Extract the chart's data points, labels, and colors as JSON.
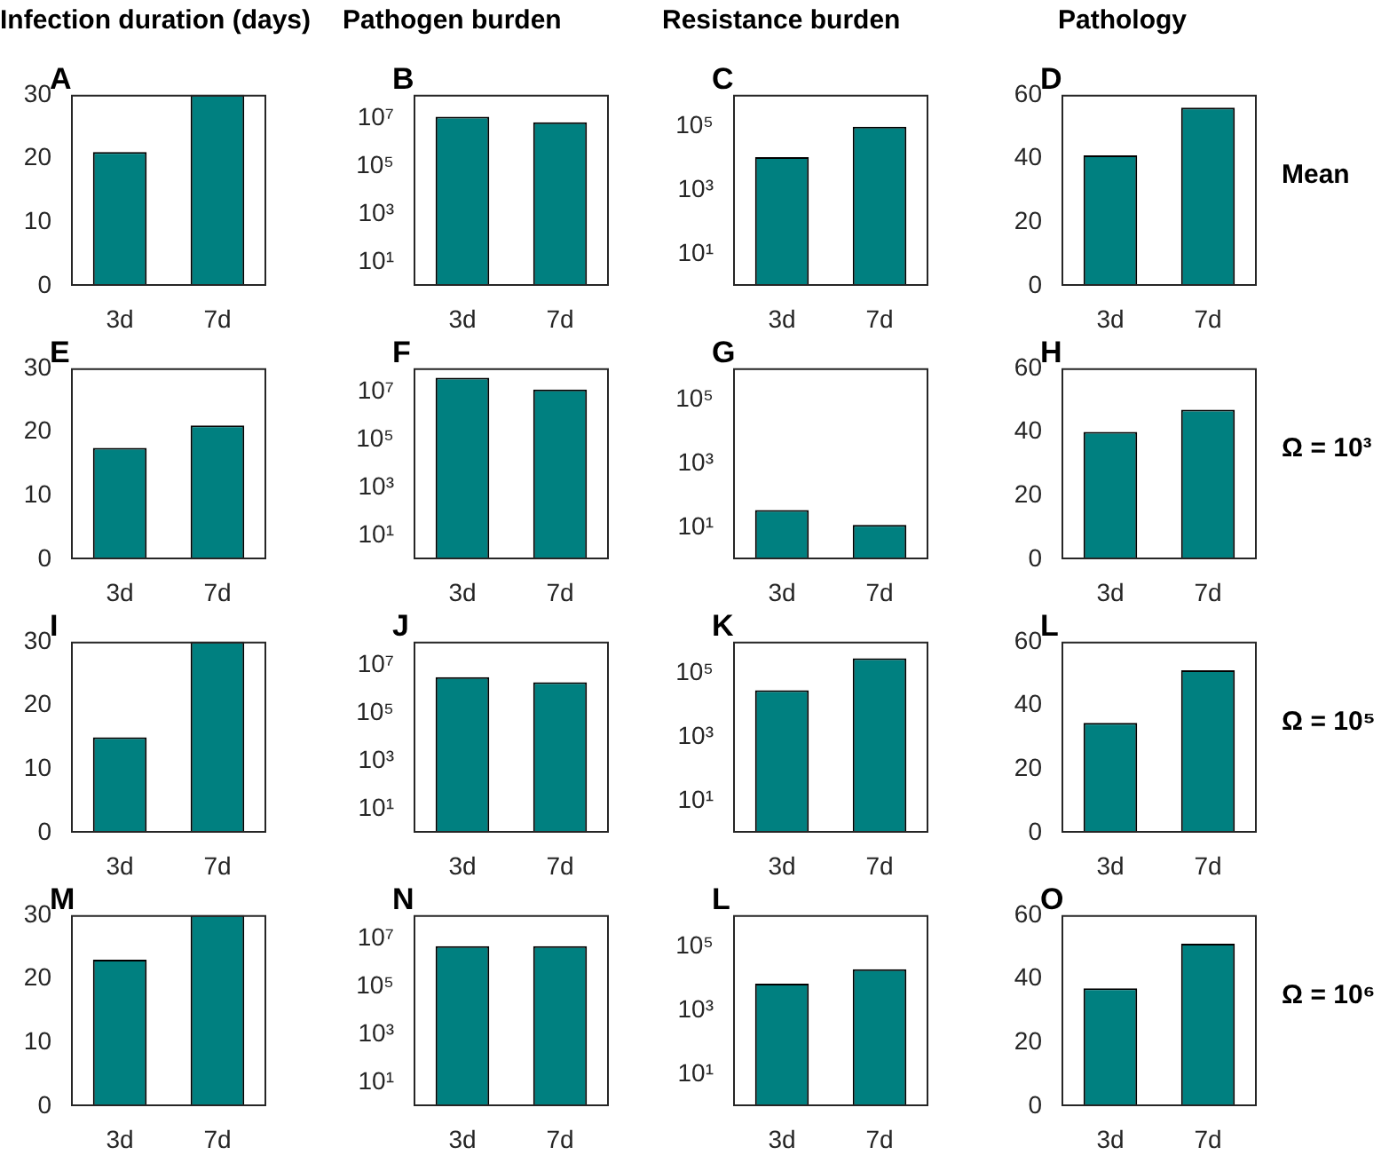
{
  "chart_data": [
    {
      "type": "bar",
      "title": "A",
      "subtitle": "Infection duration (days)",
      "categories": [
        "3d",
        "7d"
      ],
      "values": [
        21,
        30
      ],
      "color": "#008080",
      "ylim": [
        0,
        30
      ],
      "yticks": [
        0,
        10,
        20,
        30
      ]
    },
    {
      "type": "bar",
      "title": "B",
      "subtitle": "Pathogen burden",
      "categories": [
        "3d",
        "7d"
      ],
      "values": [
        12000000,
        7000000
      ],
      "color": "#008080",
      "log": true,
      "ylim": [
        1,
        100000000
      ],
      "yticks": [
        {
          "value": 10,
          "label": "10¹"
        },
        {
          "value": 1000,
          "label": "10³"
        },
        {
          "value": 100000,
          "label": "10⁵"
        },
        {
          "value": 10000000,
          "label": "10⁷"
        }
      ]
    },
    {
      "type": "bar",
      "title": "C",
      "subtitle": "Resistance burden",
      "categories": [
        "3d",
        "7d"
      ],
      "values": [
        11000,
        100000
      ],
      "color": "#008080",
      "log": true,
      "ylim": [
        1,
        1000000
      ],
      "yticks": [
        {
          "value": 10,
          "label": "10¹"
        },
        {
          "value": 1000,
          "label": "10³"
        },
        {
          "value": 100000,
          "label": "10⁵"
        }
      ]
    },
    {
      "type": "bar",
      "title": "D",
      "subtitle": "Pathology",
      "annotations": [
        "Mean"
      ],
      "categories": [
        "3d",
        "7d"
      ],
      "values": [
        41,
        56
      ],
      "color": "#008080",
      "ylim": [
        0,
        60
      ],
      "yticks": [
        0,
        20,
        40,
        60
      ]
    },
    {
      "type": "bar",
      "title": "E",
      "categories": [
        "3d",
        "7d"
      ],
      "values": [
        17.5,
        21
      ],
      "color": "#008080",
      "ylim": [
        0,
        30
      ],
      "yticks": [
        0,
        10,
        20,
        30
      ]
    },
    {
      "type": "bar",
      "title": "F",
      "categories": [
        "3d",
        "7d"
      ],
      "values": [
        40000000,
        13000000
      ],
      "color": "#008080",
      "log": true,
      "ylim": [
        1,
        100000000
      ],
      "yticks": [
        {
          "value": 10,
          "label": "10¹"
        },
        {
          "value": 1000,
          "label": "10³"
        },
        {
          "value": 100000,
          "label": "10⁵"
        },
        {
          "value": 10000000,
          "label": "10⁷"
        }
      ]
    },
    {
      "type": "bar",
      "title": "G",
      "categories": [
        "3d",
        "7d"
      ],
      "values": [
        35,
        12
      ],
      "color": "#008080",
      "log": true,
      "ylim": [
        1,
        1000000
      ],
      "yticks": [
        {
          "value": 10,
          "label": "10¹"
        },
        {
          "value": 1000,
          "label": "10³"
        },
        {
          "value": 100000,
          "label": "10⁵"
        }
      ]
    },
    {
      "type": "bar",
      "title": "H",
      "annotations": [
        "Ω = 10³"
      ],
      "categories": [
        "3d",
        "7d"
      ],
      "values": [
        40,
        47
      ],
      "color": "#008080",
      "ylim": [
        0,
        60
      ],
      "yticks": [
        0,
        20,
        40,
        60
      ]
    },
    {
      "type": "bar",
      "title": "I",
      "categories": [
        "3d",
        "7d"
      ],
      "values": [
        15,
        30
      ],
      "color": "#008080",
      "ylim": [
        0,
        30
      ],
      "yticks": [
        0,
        10,
        20,
        30
      ]
    },
    {
      "type": "bar",
      "title": "J",
      "categories": [
        "3d",
        "7d"
      ],
      "values": [
        3300000,
        2000000
      ],
      "color": "#008080",
      "log": true,
      "ylim": [
        1,
        100000000
      ],
      "yticks": [
        {
          "value": 10,
          "label": "10¹"
        },
        {
          "value": 1000,
          "label": "10³"
        },
        {
          "value": 100000,
          "label": "10⁵"
        },
        {
          "value": 10000000,
          "label": "10⁷"
        }
      ]
    },
    {
      "type": "bar",
      "title": "K",
      "categories": [
        "3d",
        "7d"
      ],
      "values": [
        30000,
        300000
      ],
      "color": "#008080",
      "log": true,
      "ylim": [
        1,
        1000000
      ],
      "yticks": [
        {
          "value": 10,
          "label": "10¹"
        },
        {
          "value": 1000,
          "label": "10³"
        },
        {
          "value": 100000,
          "label": "10⁵"
        }
      ]
    },
    {
      "type": "bar",
      "title": "L",
      "annotations": [
        "Ω = 10⁵"
      ],
      "categories": [
        "3d",
        "7d"
      ],
      "values": [
        34.5,
        51
      ],
      "color": "#008080",
      "ylim": [
        0,
        60
      ],
      "yticks": [
        0,
        20,
        40,
        60
      ]
    },
    {
      "type": "bar",
      "title": "M",
      "categories": [
        "3d",
        "7d"
      ],
      "values": [
        23,
        30
      ],
      "color": "#008080",
      "ylim": [
        0,
        30
      ],
      "yticks": [
        0,
        10,
        20,
        30
      ]
    },
    {
      "type": "bar",
      "title": "N",
      "categories": [
        "3d",
        "7d"
      ],
      "values": [
        5000000,
        5000000
      ],
      "color": "#008080",
      "log": true,
      "ylim": [
        1,
        100000000
      ],
      "yticks": [
        {
          "value": 10,
          "label": "10¹"
        },
        {
          "value": 1000,
          "label": "10³"
        },
        {
          "value": 100000,
          "label": "10⁵"
        },
        {
          "value": 10000000,
          "label": "10⁷"
        }
      ]
    },
    {
      "type": "bar",
      "title": "L",
      "categories": [
        "3d",
        "7d"
      ],
      "values": [
        7000,
        20000
      ],
      "color": "#008080",
      "log": true,
      "ylim": [
        1,
        1000000
      ],
      "yticks": [
        {
          "value": 10,
          "label": "10¹"
        },
        {
          "value": 1000,
          "label": "10³"
        },
        {
          "value": 100000,
          "label": "10⁵"
        }
      ]
    },
    {
      "type": "bar",
      "title": "O",
      "annotations": [
        "Ω = 10⁶"
      ],
      "categories": [
        "3d",
        "7d"
      ],
      "values": [
        37,
        51
      ],
      "color": "#008080",
      "ylim": [
        0,
        60
      ],
      "yticks": [
        0,
        20,
        40,
        60
      ]
    }
  ]
}
